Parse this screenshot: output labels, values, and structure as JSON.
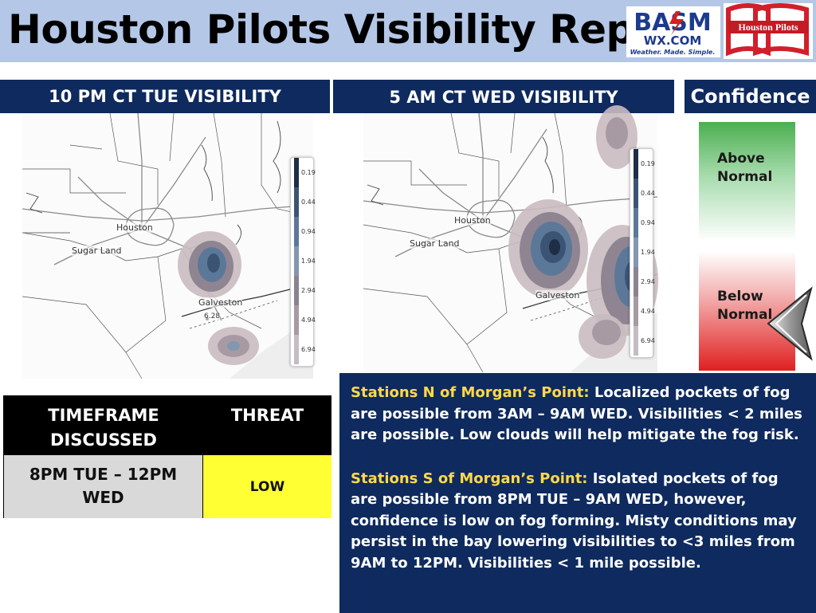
{
  "header": {
    "title": "Houston Pilots Visibility Report",
    "logo_basm": {
      "line1": "BASM",
      "line2": "WX.COM",
      "tagline": "Weather. Made. Simple."
    },
    "logo_pilots": {
      "text": "Houston Pilots"
    }
  },
  "sections": {
    "map1_header": "10 PM CT TUE VISIBILITY",
    "map2_header": "5 AM CT WED VISIBILITY",
    "confidence_header": "Confidence"
  },
  "map1": {
    "cities": {
      "houston": "Houston",
      "sugar_land": "Sugar Land",
      "galveston": "Galveston",
      "point_value": "6.28"
    },
    "legend": [
      "0.19",
      "0.44",
      "0.94",
      "1.94",
      "2.94",
      "4.94",
      "6.94"
    ]
  },
  "map2": {
    "cities": {
      "houston": "Houston",
      "sugar_land": "Sugar Land",
      "galveston": "Galveston"
    },
    "legend": [
      "0.19",
      "0.44",
      "0.94",
      "1.94",
      "2.94",
      "4.94",
      "6.94"
    ]
  },
  "legend_colors": [
    "#1f2d46",
    "#3b5474",
    "#5c7899",
    "#8297b0",
    "#8c8390",
    "#a79aa3",
    "#c5bcc3"
  ],
  "confidence": {
    "above_line1": "Above",
    "above_line2": "Normal",
    "below_line1": "Below",
    "below_line2": "Normal",
    "indicator": "below-normal",
    "colors": {
      "top": "#4caf50",
      "bottom": "#e02020"
    }
  },
  "threat_table": {
    "header_timeframe_line1": "TIMEFRAME",
    "header_timeframe_line2": "DISCUSSED",
    "header_threat": "THREAT",
    "timeframe_line1": "8PM TUE – 12PM",
    "timeframe_line2": "WED",
    "threat": "LOW",
    "threat_color": "#ffff33"
  },
  "discussion": {
    "p1_heading": "Stations N of Morgan’s Point:",
    "p1_body": " Localized pockets of fog are possible from 3AM – 9AM WED. Visibilities < 2 miles are possible. Low clouds will help mitigate the fog risk.",
    "p2_heading": "Stations S of Morgan’s Point:",
    "p2_body": " Isolated pockets of fog are possible from 8PM TUE – 9AM WED, however, confidence is low on fog forming. Misty conditions may persist in the bay lowering visibilities to <3 miles from 9AM to 12PM. Visibilities < 1 mile possible."
  }
}
